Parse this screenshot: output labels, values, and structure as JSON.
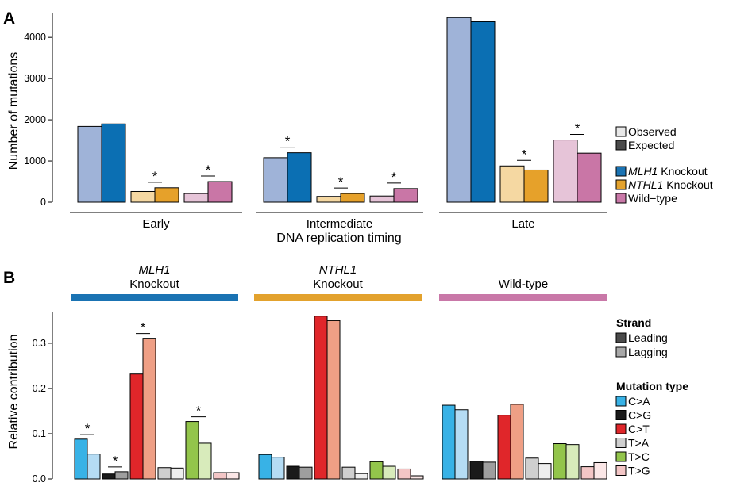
{
  "panels": {
    "a_letter": "A",
    "b_letter": "B"
  },
  "colors": {
    "mlh1_observed": "#9fb3d8",
    "mlh1_expected": "#0b6fb3",
    "nthl1_observed": "#f5d8a2",
    "nthl1_expected": "#e6a12a",
    "wt_observed": "#e6c4d8",
    "wt_expected": "#c976a6",
    "bar_mlh1": "#1a73b3",
    "bar_nthl1": "#e3a22d",
    "bar_wt": "#c978a8",
    "CA_leading": "#38b2e6",
    "CA_lagging": "#b5dcf4",
    "CG_leading": "#1a1a1a",
    "CG_lagging": "#9e9e9e",
    "CT_leading": "#e0262a",
    "CT_lagging": "#ef9f85",
    "TA_leading": "#cfcfcf",
    "TA_lagging": "#eeeeee",
    "TC_leading": "#93c54b",
    "TC_lagging": "#d8ebbb",
    "TG_leading": "#f3c6c6",
    "TG_lagging": "#fbe7e7"
  },
  "legend_a": {
    "observed": "Observed",
    "expected": "Expected",
    "items": [
      {
        "italic": "MLH1",
        "rest": " Knockout"
      },
      {
        "italic": "NTHL1",
        "rest": " Knockout"
      },
      {
        "italic": "",
        "rest": "Wild−type"
      }
    ]
  },
  "legend_b": {
    "strand_title": "Strand",
    "strand_items": [
      "Leading",
      "Lagging"
    ],
    "type_title": "Mutation type",
    "type_items": [
      "C>A",
      "C>G",
      "C>T",
      "T>A",
      "T>C",
      "T>G"
    ]
  },
  "chart_data": [
    {
      "type": "bar",
      "panel": "A",
      "xlabel": "DNA replication timing",
      "ylabel": "Number of mutations",
      "ylim": [
        0,
        4600
      ],
      "yticks": [
        0,
        1000,
        2000,
        3000,
        4000
      ],
      "facets": [
        "Early",
        "Intermediate",
        "Late"
      ],
      "groups": [
        "MLH1 Knockout",
        "NTHL1 Knockout",
        "Wild−type"
      ],
      "series": [
        {
          "name": "Observed",
          "values": [
            [
              1840,
              260,
              210
            ],
            [
              1080,
              140,
              150
            ],
            [
              4480,
              880,
              1510
            ]
          ]
        },
        {
          "name": "Expected",
          "values": [
            [
              1900,
              350,
              500
            ],
            [
              1200,
              210,
              330
            ],
            [
              4380,
              780,
              1190
            ]
          ]
        }
      ],
      "significant": [
        [
          false,
          true,
          true
        ],
        [
          true,
          true,
          true
        ],
        [
          false,
          true,
          true
        ]
      ],
      "annotation_symbol": "*"
    },
    {
      "type": "bar",
      "panel": "B",
      "ylabel": "Relative contribution",
      "ylim": [
        0,
        0.37
      ],
      "yticks": [
        "0.0",
        "0.1",
        "0.2",
        "0.3"
      ],
      "facets": [
        {
          "italic": "MLH1",
          "sub": "Knockout"
        },
        {
          "italic": "NTHL1",
          "sub": "Knockout"
        },
        {
          "italic": "",
          "sub": "Wild-type"
        }
      ],
      "categories": [
        "C>A",
        "C>G",
        "C>T",
        "T>A",
        "T>C",
        "T>G"
      ],
      "series": [
        {
          "name": "Leading",
          "values": [
            [
              0.088,
              0.011,
              0.232,
              0.025,
              0.127,
              0.014
            ],
            [
              0.054,
              0.028,
              0.36,
              0.026,
              0.038,
              0.022
            ],
            [
              0.163,
              0.039,
              0.141,
              0.046,
              0.078,
              0.027
            ]
          ]
        },
        {
          "name": "Lagging",
          "values": [
            [
              0.055,
              0.016,
              0.311,
              0.024,
              0.079,
              0.014
            ],
            [
              0.048,
              0.026,
              0.35,
              0.012,
              0.028,
              0.007
            ],
            [
              0.153,
              0.037,
              0.165,
              0.034,
              0.076,
              0.036
            ]
          ]
        }
      ],
      "significant": [
        [
          true,
          true,
          true,
          false,
          true,
          false
        ],
        [
          false,
          false,
          false,
          false,
          false,
          false
        ],
        [
          false,
          false,
          false,
          false,
          false,
          false
        ]
      ],
      "annotation_symbol": "*"
    }
  ]
}
